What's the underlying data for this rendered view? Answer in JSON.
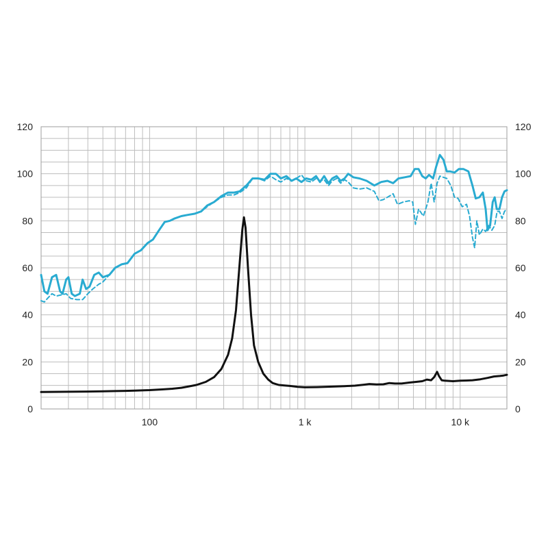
{
  "chart_data": {
    "type": "line",
    "x_scale": "log",
    "xlim": [
      20,
      20000
    ],
    "ylim": [
      0,
      120
    ],
    "y_ticks": [
      0,
      20,
      40,
      60,
      80,
      100,
      120
    ],
    "y_tick_labels": [
      "0",
      "20",
      "40",
      "60",
      "80",
      "100",
      "120"
    ],
    "x_ticks": [
      100,
      1000,
      10000
    ],
    "x_tick_labels": [
      "100",
      "1 k",
      "10 k"
    ],
    "grid": true,
    "secondary_y_axis": true,
    "series": [
      {
        "style": "solid",
        "color": "#29abd1",
        "points": [
          [
            20,
            57
          ],
          [
            21,
            50
          ],
          [
            22,
            49
          ],
          [
            23.5,
            56
          ],
          [
            25,
            57
          ],
          [
            26.5,
            50
          ],
          [
            27.5,
            49
          ],
          [
            29,
            55
          ],
          [
            30,
            56
          ],
          [
            31.5,
            49
          ],
          [
            33,
            48
          ],
          [
            35.5,
            49
          ],
          [
            37,
            55
          ],
          [
            39,
            51
          ],
          [
            41,
            52
          ],
          [
            44,
            57
          ],
          [
            47,
            58
          ],
          [
            50,
            56
          ],
          [
            55,
            57
          ],
          [
            60,
            60
          ],
          [
            66,
            61.5
          ],
          [
            72,
            62
          ],
          [
            80,
            66
          ],
          [
            88,
            67.5
          ],
          [
            97,
            70.5
          ],
          [
            105,
            72
          ],
          [
            115,
            76
          ],
          [
            125,
            79.5
          ],
          [
            135,
            80
          ],
          [
            145,
            81
          ],
          [
            160,
            82
          ],
          [
            175,
            82.5
          ],
          [
            195,
            83
          ],
          [
            215,
            84
          ],
          [
            235,
            86.5
          ],
          [
            260,
            88
          ],
          [
            290,
            90.5
          ],
          [
            320,
            92
          ],
          [
            350,
            92
          ],
          [
            380,
            92.5
          ],
          [
            420,
            95
          ],
          [
            460,
            98
          ],
          [
            500,
            98
          ],
          [
            550,
            97.5
          ],
          [
            600,
            100
          ],
          [
            650,
            100
          ],
          [
            700,
            98
          ],
          [
            760,
            99
          ],
          [
            820,
            97
          ],
          [
            880,
            98
          ],
          [
            950,
            96.5
          ],
          [
            1020,
            98
          ],
          [
            1100,
            97.5
          ],
          [
            1180,
            99
          ],
          [
            1250,
            96.5
          ],
          [
            1330,
            99
          ],
          [
            1420,
            96
          ],
          [
            1500,
            98
          ],
          [
            1600,
            99
          ],
          [
            1700,
            97
          ],
          [
            1800,
            98
          ],
          [
            1900,
            100
          ],
          [
            2050,
            98.5
          ],
          [
            2250,
            98
          ],
          [
            2500,
            97
          ],
          [
            2800,
            95
          ],
          [
            3100,
            96.5
          ],
          [
            3400,
            97
          ],
          [
            3700,
            96
          ],
          [
            4000,
            98
          ],
          [
            4400,
            98.5
          ],
          [
            4800,
            99
          ],
          [
            5100,
            102
          ],
          [
            5400,
            102
          ],
          [
            5700,
            99
          ],
          [
            6000,
            98
          ],
          [
            6300,
            99.5
          ],
          [
            6700,
            98
          ],
          [
            7000,
            103
          ],
          [
            7400,
            108
          ],
          [
            7800,
            106
          ],
          [
            8200,
            101
          ],
          [
            8600,
            101
          ],
          [
            9200,
            100.5
          ],
          [
            9800,
            102
          ],
          [
            10500,
            102
          ],
          [
            11300,
            101
          ],
          [
            12000,
            95
          ],
          [
            12600,
            89.5
          ],
          [
            13300,
            90
          ],
          [
            14000,
            92
          ],
          [
            14600,
            85
          ],
          [
            15000,
            76
          ],
          [
            15600,
            78
          ],
          [
            16200,
            88
          ],
          [
            16700,
            90
          ],
          [
            17200,
            85
          ],
          [
            17900,
            85
          ],
          [
            18600,
            90
          ],
          [
            19300,
            92.5
          ],
          [
            20000,
            93
          ]
        ]
      },
      {
        "style": "dashed",
        "color": "#29abd1",
        "points": [
          [
            20,
            46
          ],
          [
            21,
            45.5
          ],
          [
            22,
            47
          ],
          [
            23.5,
            49
          ],
          [
            25,
            48
          ],
          [
            27,
            48.5
          ],
          [
            29,
            49
          ],
          [
            31,
            47
          ],
          [
            34,
            46.5
          ],
          [
            37,
            46.5
          ],
          [
            40,
            49
          ],
          [
            43,
            51
          ],
          [
            47,
            53
          ],
          [
            50,
            54
          ],
          [
            55,
            57
          ],
          [
            60,
            60
          ],
          [
            66,
            61.5
          ],
          [
            72,
            62
          ],
          [
            80,
            66
          ],
          [
            88,
            67.5
          ],
          [
            97,
            70.5
          ],
          [
            105,
            72
          ],
          [
            115,
            76
          ],
          [
            125,
            79.5
          ],
          [
            135,
            80
          ],
          [
            145,
            81
          ],
          [
            160,
            82
          ],
          [
            175,
            82.5
          ],
          [
            195,
            83
          ],
          [
            215,
            84
          ],
          [
            235,
            86
          ],
          [
            260,
            88
          ],
          [
            290,
            90
          ],
          [
            320,
            91
          ],
          [
            350,
            91
          ],
          [
            380,
            92
          ],
          [
            420,
            94
          ],
          [
            460,
            98
          ],
          [
            500,
            98
          ],
          [
            550,
            97
          ],
          [
            600,
            99
          ],
          [
            650,
            97.5
          ],
          [
            700,
            96.5
          ],
          [
            760,
            98
          ],
          [
            820,
            97
          ],
          [
            880,
            98
          ],
          [
            950,
            99.5
          ],
          [
            1020,
            97
          ],
          [
            1100,
            96.5
          ],
          [
            1180,
            98
          ],
          [
            1250,
            97
          ],
          [
            1330,
            97.5
          ],
          [
            1420,
            95
          ],
          [
            1500,
            97
          ],
          [
            1600,
            98
          ],
          [
            1700,
            96
          ],
          [
            1800,
            97.5
          ],
          [
            1900,
            96.5
          ],
          [
            2050,
            94
          ],
          [
            2250,
            93.5
          ],
          [
            2500,
            94
          ],
          [
            2800,
            92.5
          ],
          [
            3000,
            88.5
          ],
          [
            3200,
            89
          ],
          [
            3500,
            90.5
          ],
          [
            3700,
            91.5
          ],
          [
            3950,
            87
          ],
          [
            4300,
            88
          ],
          [
            4700,
            88.5
          ],
          [
            4950,
            88
          ],
          [
            5150,
            78.5
          ],
          [
            5400,
            85
          ],
          [
            5800,
            82
          ],
          [
            6200,
            88
          ],
          [
            6500,
            96
          ],
          [
            6800,
            88
          ],
          [
            7100,
            96
          ],
          [
            7400,
            99
          ],
          [
            7800,
            98.5
          ],
          [
            8200,
            98
          ],
          [
            8700,
            95
          ],
          [
            9200,
            90
          ],
          [
            9700,
            89.5
          ],
          [
            10300,
            86
          ],
          [
            11000,
            87
          ],
          [
            11500,
            82
          ],
          [
            12000,
            73
          ],
          [
            12400,
            68.5
          ],
          [
            12800,
            80
          ],
          [
            13300,
            74
          ],
          [
            14000,
            76.5
          ],
          [
            14600,
            75.5
          ],
          [
            15300,
            78
          ],
          [
            16000,
            76
          ],
          [
            16700,
            78
          ],
          [
            17300,
            84
          ],
          [
            17900,
            84
          ],
          [
            18600,
            81
          ],
          [
            19300,
            84
          ],
          [
            20000,
            85
          ]
        ]
      },
      {
        "style": "solid",
        "color": "#111111",
        "points": [
          [
            20,
            7.2
          ],
          [
            30,
            7.3
          ],
          [
            40,
            7.4
          ],
          [
            50,
            7.5
          ],
          [
            60,
            7.6
          ],
          [
            70,
            7.7
          ],
          [
            80,
            7.8
          ],
          [
            100,
            8.0
          ],
          [
            120,
            8.3
          ],
          [
            140,
            8.6
          ],
          [
            160,
            9.0
          ],
          [
            180,
            9.6
          ],
          [
            200,
            10.2
          ],
          [
            230,
            11.5
          ],
          [
            260,
            13.5
          ],
          [
            290,
            17
          ],
          [
            320,
            23
          ],
          [
            340,
            30
          ],
          [
            360,
            42
          ],
          [
            380,
            62
          ],
          [
            395,
            76
          ],
          [
            405,
            81.5
          ],
          [
            415,
            77
          ],
          [
            430,
            60
          ],
          [
            450,
            40
          ],
          [
            470,
            27
          ],
          [
            500,
            20
          ],
          [
            540,
            15
          ],
          [
            580,
            12.5
          ],
          [
            620,
            11
          ],
          [
            680,
            10.2
          ],
          [
            740,
            10
          ],
          [
            800,
            9.8
          ],
          [
            900,
            9.4
          ],
          [
            1000,
            9.2
          ],
          [
            1200,
            9.3
          ],
          [
            1500,
            9.5
          ],
          [
            1800,
            9.7
          ],
          [
            2100,
            9.9
          ],
          [
            2400,
            10.3
          ],
          [
            2600,
            10.6
          ],
          [
            2900,
            10.4
          ],
          [
            3200,
            10.5
          ],
          [
            3500,
            11
          ],
          [
            3800,
            10.8
          ],
          [
            4200,
            10.8
          ],
          [
            4700,
            11.2
          ],
          [
            5200,
            11.5
          ],
          [
            5700,
            11.8
          ],
          [
            6100,
            12.5
          ],
          [
            6500,
            12.2
          ],
          [
            6800,
            13.5
          ],
          [
            7100,
            15.8
          ],
          [
            7300,
            14
          ],
          [
            7600,
            12.2
          ],
          [
            8000,
            12
          ],
          [
            9000,
            11.8
          ],
          [
            10000,
            12
          ],
          [
            11000,
            12.1
          ],
          [
            12000,
            12.2
          ],
          [
            13500,
            12.6
          ],
          [
            15000,
            13.2
          ],
          [
            16500,
            13.8
          ],
          [
            18000,
            14
          ],
          [
            19000,
            14.2
          ],
          [
            20000,
            14.5
          ]
        ]
      }
    ]
  }
}
